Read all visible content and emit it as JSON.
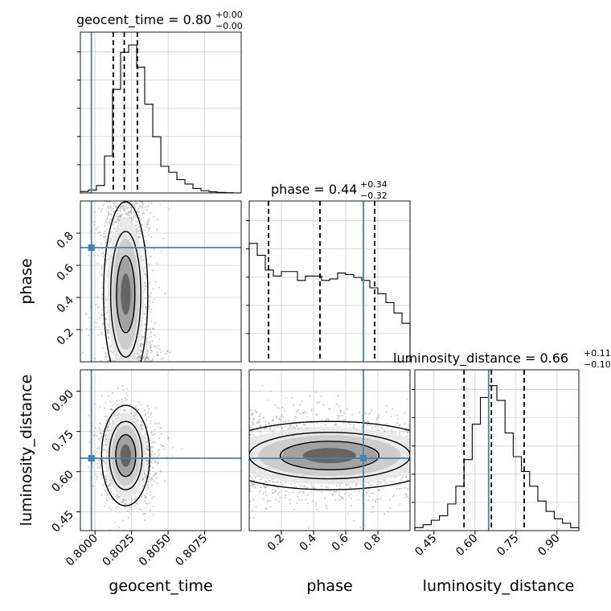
{
  "chart_data": {
    "type": "corner",
    "parameters": [
      {
        "name": "geocent_time",
        "axis_label": "geocent_time",
        "title_main": "geocent_time = 0.80",
        "title_plus": "+0.00",
        "title_minus": "−0.00",
        "range": [
          0.799,
          0.81
        ],
        "ticks": [
          0.8,
          0.8025,
          0.805,
          0.8075
        ],
        "tick_labels": [
          "0.8000",
          "0.8025",
          "0.8050",
          "0.8075"
        ],
        "truth": 0.79975,
        "quantiles": [
          0.80125,
          0.802,
          0.8029
        ],
        "hist_counts": [
          0.01,
          0.02,
          0.05,
          0.25,
          0.7,
          0.95,
          1.0,
          0.85,
          0.6,
          0.38,
          0.18,
          0.14,
          0.09,
          0.06,
          0.03,
          0.015,
          0.008,
          0.004,
          0.002,
          0.0
        ]
      },
      {
        "name": "phase",
        "axis_label": "phase",
        "title_main": "phase = 0.44",
        "title_plus": "+0.34",
        "title_minus": "−0.32",
        "range": [
          0.0,
          1.0
        ],
        "ticks": [
          0.2,
          0.4,
          0.6,
          0.8
        ],
        "tick_labels": [
          "0.2",
          "0.4",
          "0.6",
          "0.8"
        ],
        "truth": 0.71,
        "quantiles": [
          0.12,
          0.44,
          0.78
        ],
        "hist_counts": [
          0.8,
          0.72,
          0.62,
          0.58,
          0.61,
          0.61,
          0.55,
          0.58,
          0.58,
          0.55,
          0.56,
          0.6,
          0.59,
          0.57,
          0.55,
          0.5,
          0.46,
          0.4,
          0.33,
          0.26
        ]
      },
      {
        "name": "luminosity_distance",
        "axis_label": "luminosity_distance",
        "title_main": "luminosity_distance = 0.66",
        "title_plus": "+0.11",
        "title_minus": "−0.10",
        "range": [
          0.38,
          0.98
        ],
        "ticks": [
          0.45,
          0.6,
          0.75,
          0.9
        ],
        "tick_labels": [
          "0.45",
          "0.60",
          "0.75",
          "0.90"
        ],
        "truth": 0.65,
        "quantiles": [
          0.56,
          0.66,
          0.78
        ],
        "hist_counts": [
          0.02,
          0.04,
          0.07,
          0.1,
          0.18,
          0.3,
          0.48,
          0.72,
          0.9,
          0.98,
          0.88,
          0.66,
          0.5,
          0.4,
          0.3,
          0.2,
          0.13,
          0.08,
          0.05,
          0.02
        ]
      }
    ],
    "truth_color": "#4682b4",
    "contour_color": "#000000",
    "grid": true
  }
}
